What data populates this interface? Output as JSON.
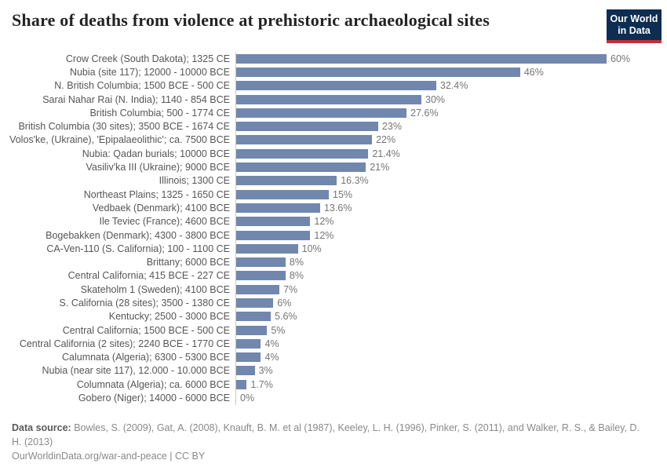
{
  "header": {
    "title": "Share of deaths from violence at prehistoric archaeological sites",
    "logo": {
      "line1": "Our World",
      "line2": "in Data",
      "bg_color": "#0d2d52",
      "stripe_color": "#bf3036"
    }
  },
  "chart_data": {
    "type": "bar",
    "orientation": "horizontal",
    "title": "Share of deaths from violence at prehistoric archaeological sites",
    "unit": "%",
    "xlim": [
      0,
      60
    ],
    "grid": false,
    "legend": "none",
    "bar_color": "#7187ad",
    "categories": [
      "Crow Creek (South Dakota); 1325 CE",
      "Nubia (site 117); 12000 - 10000 BCE",
      "N. British Columbia; 1500 BCE - 500 CE",
      "Sarai Nahar Rai (N. India); 1140 - 854 BCE",
      "British Columbia; 500 - 1774 CE",
      "British Columbia (30 sites); 3500 BCE - 1674 CE",
      "Volos'ke, (Ukraine), 'Epipalaeolithic'; ca. 7500 BCE",
      "Nubia: Qadan burials; 10000 BCE",
      "Vasiliv'ka III (Ukraine); 9000 BCE",
      "Illinois; 1300 CE",
      "Northeast Plains; 1325 - 1650 CE",
      "Vedbaek (Denmark); 4100 BCE",
      "Ile Teviec (France); 4600 BCE",
      "Bogebakken (Denmark); 4300 - 3800 BCE",
      "CA-Ven-110 (S. California); 100 - 1100 CE",
      "Brittany; 6000 BCE",
      "Central California; 415 BCE - 227 CE",
      "Skateholm 1 (Sweden); 4100 BCE",
      "S. California (28 sites); 3500 - 1380 CE",
      "Kentucky; 2500 - 3000 BCE",
      "Central California; 1500 BCE - 500 CE",
      "Central California (2 sites); 2240 BCE - 1770 CE",
      "Calumnata (Algeria); 6300 - 5300 BCE",
      "Nubia (near site 117), 12.000 - 10.000 BCE",
      "Columnata (Algeria); ca. 6000 BCE",
      "Gobero (Niger); 14000 - 6000 BCE"
    ],
    "values": [
      60,
      46,
      32.4,
      30,
      27.6,
      23,
      22,
      21.4,
      21,
      16.3,
      15,
      13.6,
      12,
      12,
      10,
      8,
      8,
      7,
      6,
      5.6,
      5,
      4,
      4,
      3,
      1.7,
      0
    ],
    "value_labels": [
      "60%",
      "46%",
      "32.4%",
      "30%",
      "27.6%",
      "23%",
      "22%",
      "21.4%",
      "21%",
      "16.3%",
      "15%",
      "13.6%",
      "12%",
      "12%",
      "10%",
      "8%",
      "8%",
      "7%",
      "6%",
      "5.6%",
      "5%",
      "4%",
      "4%",
      "3%",
      "1.7%",
      "0%"
    ]
  },
  "footer": {
    "source_label": "Data source:",
    "source_text": "Bowles, S. (2009), Gat, A. (2008), Knauft, B. M. et al (1987), Keeley, L. H. (1996), Pinker, S. (2011), and Walker, R. S., & Bailey, D. H. (2013)",
    "link_text": "OurWorldinData.org/war-and-peace | CC BY"
  }
}
